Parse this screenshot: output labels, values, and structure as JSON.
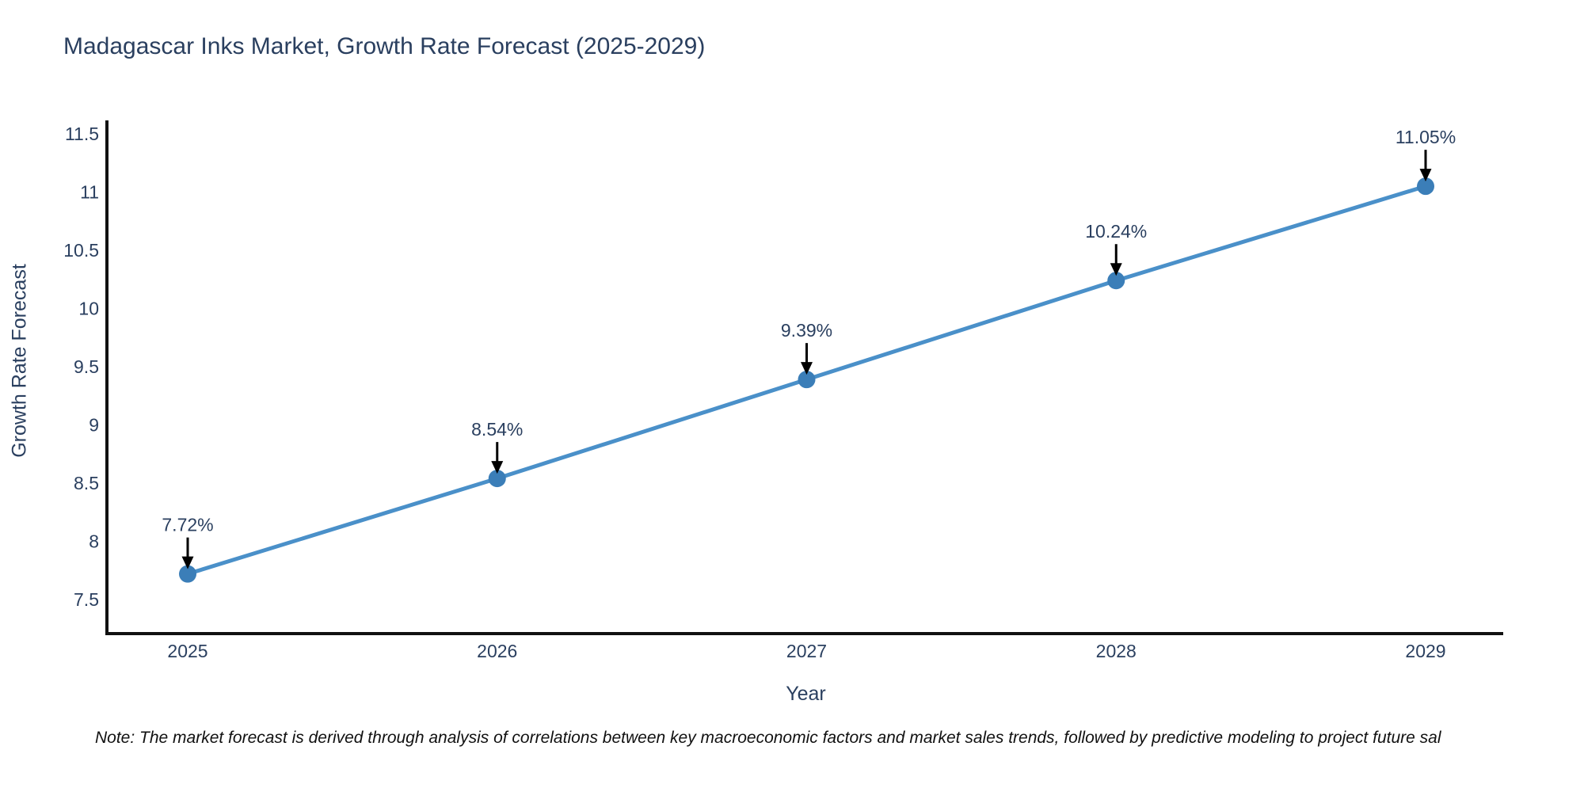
{
  "page": {
    "background": "#ffffff"
  },
  "chart_data": {
    "type": "line",
    "title": "Madagascar Inks Market, Growth Rate Forecast (2025-2029)",
    "xlabel": "Year",
    "ylabel": "Growth Rate Forecast",
    "categories": [
      "2025",
      "2026",
      "2027",
      "2028",
      "2029"
    ],
    "series": [
      {
        "name": "Growth Rate Forecast",
        "values": [
          7.72,
          8.54,
          9.39,
          10.24,
          11.05
        ]
      }
    ],
    "point_labels": [
      "7.72%",
      "8.54%",
      "9.39%",
      "10.24%",
      "11.05%"
    ],
    "y_ticks": [
      "7.5",
      "8",
      "8.5",
      "9",
      "9.5",
      "10",
      "10.5",
      "11",
      "11.5"
    ],
    "y_tick_values": [
      7.5,
      8,
      8.5,
      9,
      9.5,
      10,
      10.5,
      11,
      11.5
    ],
    "ylim": [
      7.2,
      11.6
    ],
    "grid": false,
    "legend_position": "none",
    "annotation_style": "value-above-point-with-down-arrow",
    "colors": {
      "line": "#4a90c9",
      "marker": "#3b7eb8",
      "axis": "#111111",
      "text": "#2a3f5f",
      "arrow": "#000000"
    }
  },
  "note": {
    "text": "Note: The market forecast is derived through analysis of correlations between key macroeconomic factors and market sales trends, followed by predictive modeling to project future sal"
  }
}
